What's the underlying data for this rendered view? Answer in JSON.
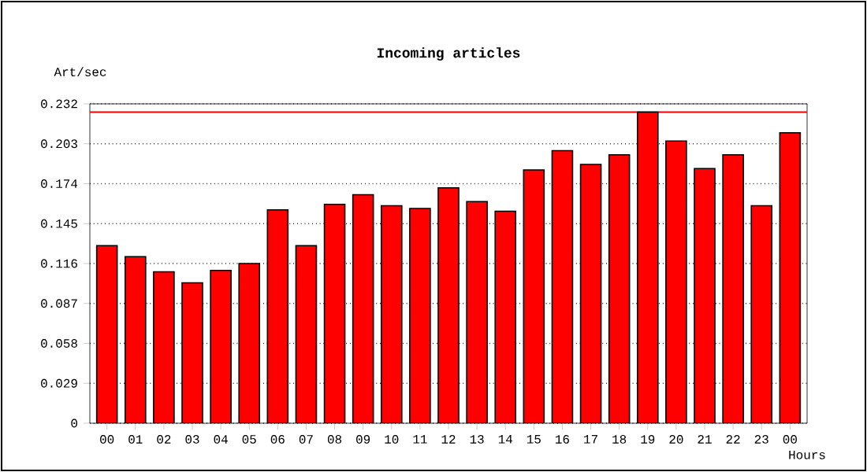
{
  "chart_data": {
    "type": "bar",
    "title": "Incoming articles",
    "xlabel": "Hours",
    "ylabel": "Art/sec",
    "categories": [
      "00",
      "01",
      "02",
      "03",
      "04",
      "05",
      "06",
      "07",
      "08",
      "09",
      "10",
      "11",
      "12",
      "13",
      "14",
      "15",
      "16",
      "17",
      "18",
      "19",
      "20",
      "21",
      "22",
      "23",
      "00"
    ],
    "values": [
      0.129,
      0.121,
      0.11,
      0.102,
      0.111,
      0.116,
      0.155,
      0.129,
      0.159,
      0.166,
      0.158,
      0.156,
      0.171,
      0.161,
      0.154,
      0.184,
      0.198,
      0.188,
      0.195,
      0.226,
      0.205,
      0.185,
      0.195,
      0.158,
      0.211
    ],
    "color": "#ff0000",
    "ylim": [
      0,
      0.232
    ],
    "yticks": [
      0,
      0.029,
      0.058,
      0.087,
      0.116,
      0.145,
      0.174,
      0.203,
      0.232
    ],
    "grid": "y",
    "ref_lines": [
      {
        "axis": "y",
        "value": 0.226,
        "color": "#ff0000"
      }
    ]
  }
}
